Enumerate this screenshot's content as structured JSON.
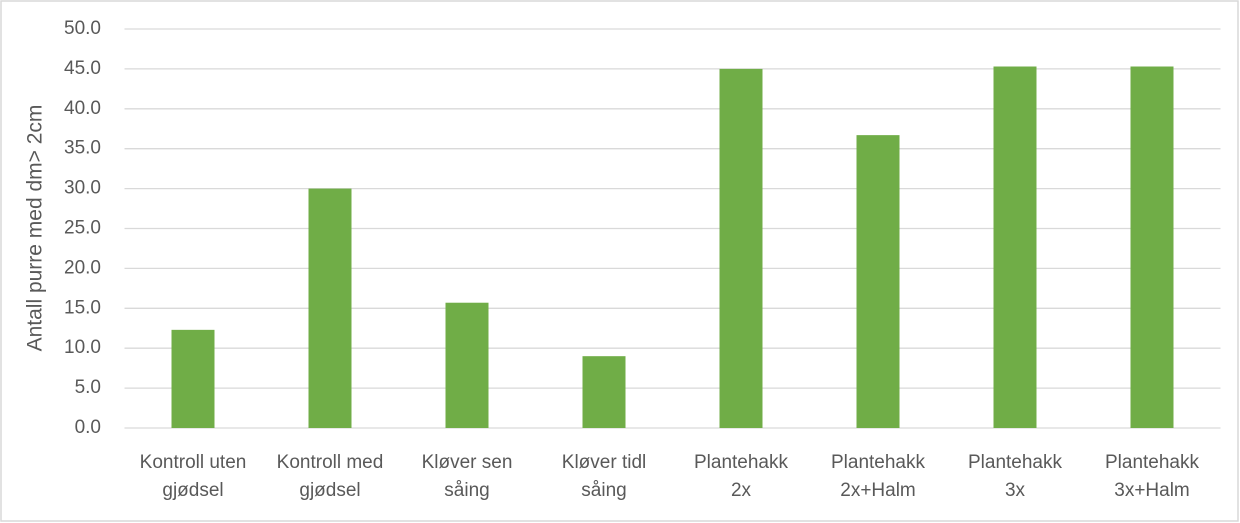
{
  "chart_data": {
    "type": "bar",
    "y_label": "Antall purre med dm> 2cm",
    "categories": [
      [
        "Kontroll uten",
        "gjødsel"
      ],
      [
        "Kontroll med",
        "gjødsel"
      ],
      [
        "Kløver sen",
        "såing"
      ],
      [
        "Kløver tidl",
        "såing"
      ],
      [
        "Plantehakk",
        "2x"
      ],
      [
        "Plantehakk",
        "2x+Halm"
      ],
      [
        "Plantehakk",
        "3x"
      ],
      [
        "Plantehakk",
        "3x+Halm"
      ]
    ],
    "values": [
      12.3,
      30.0,
      15.7,
      9.0,
      45.0,
      36.7,
      45.3,
      45.3
    ],
    "color": "#70ad47",
    "ylim": [
      0,
      50
    ],
    "yticks": [
      {
        "value": 0,
        "label": "0.0"
      },
      {
        "value": 5,
        "label": "5.0"
      },
      {
        "value": 10,
        "label": "10.0"
      },
      {
        "value": 15,
        "label": "15.0"
      },
      {
        "value": 20,
        "label": "20.0"
      },
      {
        "value": 25,
        "label": "25.0"
      },
      {
        "value": 30,
        "label": "30.0"
      },
      {
        "value": 35,
        "label": "35.0"
      },
      {
        "value": 40,
        "label": "40.0"
      },
      {
        "value": 45,
        "label": "45.0"
      },
      {
        "value": 50,
        "label": "50.0"
      }
    ],
    "grid": true
  }
}
